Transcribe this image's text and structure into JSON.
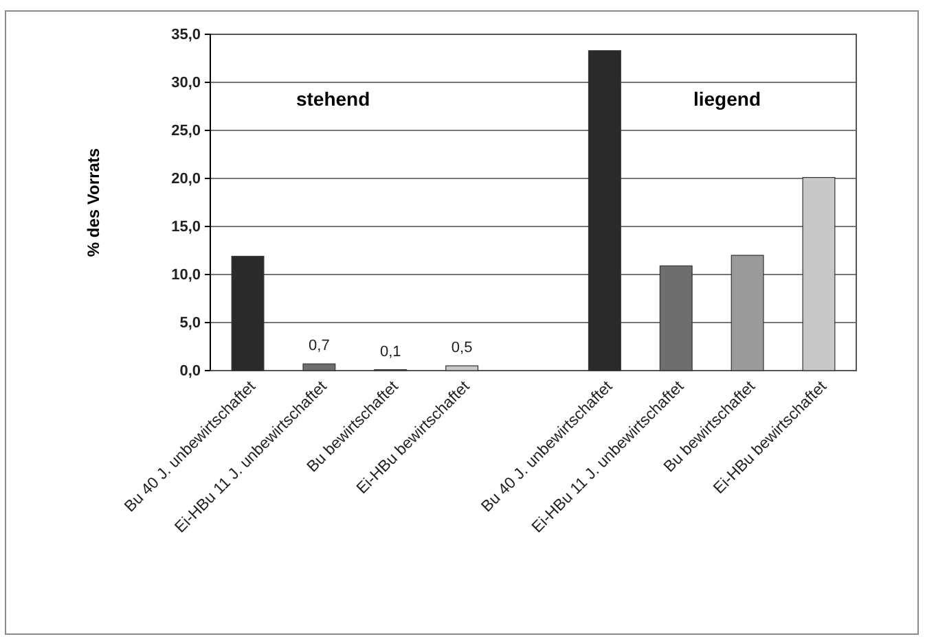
{
  "chart_data": {
    "type": "bar",
    "ylabel": "% des Vorrats",
    "categories": [
      "Bu 40 J. unbewirtschaftet",
      "Ei-HBu 11 J. unbewirtschaftet",
      "Bu bewirtschaftet",
      "Ei-HBu bewirtschaftet",
      null,
      "Bu 40 J. unbewirtschaftet",
      "Ei-HBu 11 J. unbewirtschaftet",
      "Bu bewirtschaftet",
      "Ei-HBu bewirtschaftet"
    ],
    "values": [
      11.9,
      0.7,
      0.1,
      0.5,
      null,
      33.3,
      10.9,
      12.0,
      20.1
    ],
    "colors": [
      "#2a2a2a",
      "#6e6e6e",
      "#9a9a9a",
      "#c8c8c8",
      null,
      "#2a2a2a",
      "#6e6e6e",
      "#9a9a9a",
      "#c8c8c8"
    ],
    "value_labels": [
      null,
      "0,7",
      "0,1",
      "0,5",
      null,
      null,
      null,
      null,
      null
    ],
    "ylim": [
      0,
      35
    ],
    "yticks": [
      {
        "value": 0,
        "label": "0,0"
      },
      {
        "value": 5,
        "label": "5,0"
      },
      {
        "value": 10,
        "label": "10,0"
      },
      {
        "value": 15,
        "label": "15,0"
      },
      {
        "value": 20,
        "label": "20,0"
      },
      {
        "value": 25,
        "label": "25,0"
      },
      {
        "value": 30,
        "label": "30,0"
      },
      {
        "value": 35,
        "label": "35,0"
      }
    ],
    "grid": "y",
    "annotations": [
      "stehend",
      "liegend"
    ]
  }
}
